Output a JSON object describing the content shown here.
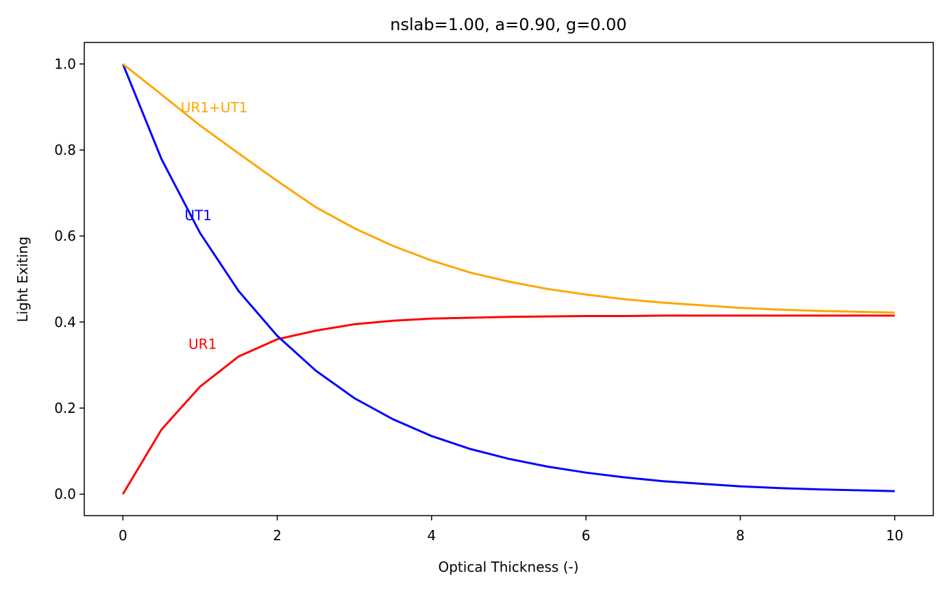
{
  "chart_data": {
    "type": "line",
    "title": "nslab=1.00, a=0.90, g=0.00",
    "xlabel": "Optical Thickness (-)",
    "ylabel": "Light Exiting",
    "x": [
      0,
      0.5,
      1,
      1.5,
      2,
      2.5,
      3,
      3.5,
      4,
      4.5,
      5,
      5.5,
      6,
      6.5,
      7,
      7.5,
      8,
      8.5,
      9,
      9.5,
      10
    ],
    "series": [
      {
        "name": "UR1",
        "color": "#ff0000",
        "values": [
          0,
          0.15,
          0.25,
          0.32,
          0.36,
          0.38,
          0.395,
          0.403,
          0.408,
          0.41,
          0.412,
          0.413,
          0.414,
          0.414,
          0.415,
          0.415,
          0.415,
          0.415,
          0.415,
          0.415,
          0.415
        ]
      },
      {
        "name": "UT1",
        "color": "#0000ff",
        "values": [
          1,
          0.779,
          0.607,
          0.472,
          0.368,
          0.287,
          0.223,
          0.174,
          0.135,
          0.105,
          0.082,
          0.064,
          0.05,
          0.039,
          0.03,
          0.024,
          0.018,
          0.014,
          0.011,
          0.009,
          0.007
        ]
      },
      {
        "name": "UR1+UT1",
        "color": "#ffa500",
        "values": [
          1,
          0.929,
          0.857,
          0.792,
          0.728,
          0.667,
          0.618,
          0.577,
          0.543,
          0.515,
          0.494,
          0.477,
          0.464,
          0.453,
          0.445,
          0.439,
          0.433,
          0.429,
          0.426,
          0.424,
          0.422
        ]
      }
    ],
    "annotations": [
      {
        "text": "UR1+UT1",
        "x": 0.75,
        "y": 0.9,
        "color": "#ffa500"
      },
      {
        "text": "UT1",
        "x": 0.8,
        "y": 0.65,
        "color": "#0000ff"
      },
      {
        "text": "UR1",
        "x": 0.85,
        "y": 0.35,
        "color": "#ff0000"
      }
    ],
    "xlim": [
      -0.5,
      10.5
    ],
    "ylim": [
      -0.05,
      1.05
    ],
    "xticks": [
      0,
      2,
      4,
      6,
      8,
      10
    ],
    "yticks": [
      {
        "value": 0,
        "label": "0.0"
      },
      {
        "value": 0.2,
        "label": "0.2"
      },
      {
        "value": 0.4,
        "label": "0.4"
      },
      {
        "value": 0.6,
        "label": "0.6"
      },
      {
        "value": 0.8,
        "label": "0.8"
      },
      {
        "value": 1,
        "label": "1.0"
      }
    ]
  }
}
